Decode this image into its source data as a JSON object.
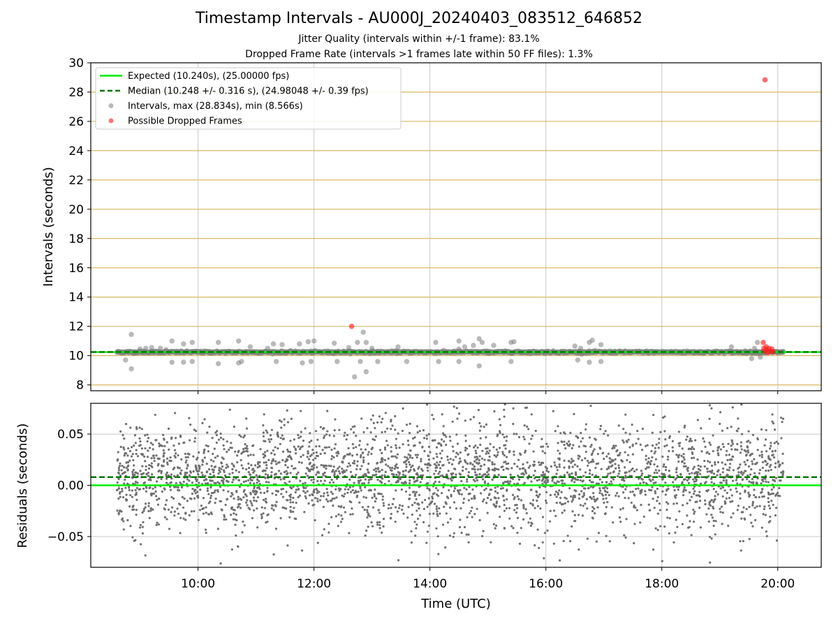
{
  "title": "Timestamp Intervals - AU000J_20240403_083512_646852",
  "subtitle_1": "Jitter Quality (intervals within +/-1 frame): 83.1%",
  "subtitle_2": "Dropped Frame Rate (intervals >1 frames late within 50 FF files): 1.3%",
  "colors": {
    "expected": "#00ee00",
    "median": "#007700",
    "intervals": "#808080",
    "dropped": "#ff2020",
    "hline": "#d8b860",
    "grid": "#c8c8c8",
    "residuals": "#707070"
  },
  "chart_data": [
    {
      "type": "scatter",
      "panel": "top",
      "ylabel": "Intervals (seconds)",
      "xlim": [
        8.15,
        20.75
      ],
      "ylim": [
        7.6,
        30
      ],
      "yticks": [
        8,
        10,
        12,
        14,
        16,
        18,
        20,
        22,
        24,
        26,
        28,
        30
      ],
      "xtick_values": [
        10,
        12,
        14,
        16,
        18,
        20
      ],
      "horizontal_lines_y": [
        8,
        10,
        12,
        14,
        16,
        18,
        20,
        22,
        24,
        26,
        28
      ],
      "grid": "vertical lines at x ticks",
      "legend_placement": "top-left",
      "legend": [
        {
          "label": "Expected (10.240s), (25.00000 fps)",
          "style": "solid-line"
        },
        {
          "label": "Median (10.248 +/- 0.316 s), (24.98048 +/- 0.39 fps)",
          "style": "dashed-line"
        },
        {
          "label": "Intervals, max (28.834s), min (8.566s)",
          "style": "marker-gray"
        },
        {
          "label": "Possible Dropped Frames",
          "style": "marker-red"
        }
      ],
      "expected_y": 10.24,
      "median_y": 10.248,
      "time_range": [
        8.6,
        20.1
      ],
      "baseline": 10.24,
      "outliers": [
        [
          8.75,
          9.7
        ],
        [
          8.85,
          11.45
        ],
        [
          8.85,
          9.1
        ],
        [
          9.0,
          10.45
        ],
        [
          9.1,
          10.5
        ],
        [
          9.2,
          10.55
        ],
        [
          9.35,
          10.5
        ],
        [
          9.45,
          10.4
        ],
        [
          9.55,
          11.0
        ],
        [
          9.55,
          9.55
        ],
        [
          9.75,
          10.8
        ],
        [
          9.75,
          9.55
        ],
        [
          9.9,
          10.9
        ],
        [
          9.9,
          9.6
        ],
        [
          10.35,
          10.9
        ],
        [
          10.35,
          9.45
        ],
        [
          10.7,
          11.0
        ],
        [
          10.7,
          9.5
        ],
        [
          10.75,
          9.6
        ],
        [
          10.9,
          10.6
        ],
        [
          11.2,
          10.5
        ],
        [
          11.3,
          10.8
        ],
        [
          11.35,
          9.6
        ],
        [
          11.45,
          10.75
        ],
        [
          11.75,
          10.8
        ],
        [
          11.8,
          9.5
        ],
        [
          11.9,
          10.95
        ],
        [
          11.95,
          9.6
        ],
        [
          12.0,
          11.0
        ],
        [
          12.35,
          10.85
        ],
        [
          12.4,
          9.6
        ],
        [
          12.6,
          10.55
        ],
        [
          12.7,
          8.55
        ],
        [
          12.75,
          10.9
        ],
        [
          12.8,
          9.6
        ],
        [
          12.85,
          11.6
        ],
        [
          12.9,
          10.9
        ],
        [
          12.9,
          8.9
        ],
        [
          13.0,
          10.5
        ],
        [
          13.1,
          9.6
        ],
        [
          13.45,
          10.6
        ],
        [
          13.6,
          9.6
        ],
        [
          14.1,
          10.9
        ],
        [
          14.15,
          9.6
        ],
        [
          14.5,
          10.45
        ],
        [
          14.5,
          9.6
        ],
        [
          14.5,
          11.0
        ],
        [
          14.6,
          10.6
        ],
        [
          14.75,
          10.7
        ],
        [
          14.85,
          11.15
        ],
        [
          14.85,
          9.3
        ],
        [
          14.9,
          10.9
        ],
        [
          15.1,
          10.7
        ],
        [
          15.4,
          10.9
        ],
        [
          15.4,
          9.6
        ],
        [
          15.45,
          10.95
        ],
        [
          16.5,
          10.65
        ],
        [
          16.55,
          9.7
        ],
        [
          16.6,
          10.5
        ],
        [
          16.75,
          10.9
        ],
        [
          16.75,
          9.55
        ],
        [
          16.8,
          11.05
        ],
        [
          16.95,
          10.75
        ],
        [
          16.95,
          9.6
        ],
        [
          19.2,
          10.6
        ],
        [
          19.55,
          9.8
        ],
        [
          19.6,
          10.5
        ],
        [
          19.65,
          10.9
        ],
        [
          19.7,
          9.9
        ]
      ],
      "dropped_frames": [
        [
          12.65,
          12.0
        ],
        [
          19.78,
          28.834
        ],
        [
          19.75,
          10.9
        ],
        [
          19.76,
          10.5
        ],
        [
          19.78,
          10.3
        ],
        [
          19.8,
          10.6
        ],
        [
          19.81,
          10.4
        ],
        [
          19.83,
          10.2
        ],
        [
          19.85,
          10.5
        ],
        [
          19.87,
          10.3
        ],
        [
          19.9,
          10.45
        ],
        [
          19.92,
          10.25
        ]
      ]
    },
    {
      "type": "scatter",
      "panel": "bottom",
      "xlabel": "Time (UTC)",
      "ylabel": "Residuals (seconds)",
      "xlim": [
        8.15,
        20.75
      ],
      "ylim": [
        -0.08,
        0.08
      ],
      "yticks": [
        -0.05,
        0.0,
        0.05
      ],
      "ytick_labels": [
        "−0.05",
        "0.00",
        "0.05"
      ],
      "xticks": [
        "10:00",
        "12:00",
        "14:00",
        "16:00",
        "18:00",
        "20:00"
      ],
      "xtick_values": [
        10,
        12,
        14,
        16,
        18,
        20
      ],
      "grid": "both",
      "expected_y": 0.0,
      "median_y": 0.008,
      "time_range": [
        8.6,
        20.1
      ]
    }
  ]
}
